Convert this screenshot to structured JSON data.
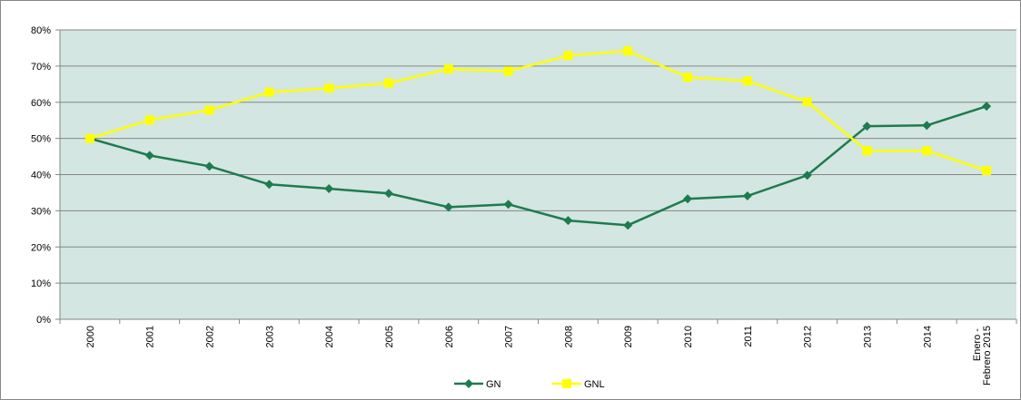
{
  "chart_data": {
    "type": "line",
    "categories": [
      "2000",
      "2001",
      "2002",
      "2003",
      "2004",
      "2005",
      "2006",
      "2007",
      "2008",
      "2009",
      "2010",
      "2011",
      "2012",
      "2013",
      "2014",
      "Enero - Febrero 2015"
    ],
    "series": [
      {
        "name": "GN",
        "color": "#1e7b4f",
        "marker": "diamond",
        "values": [
          50,
          45.3,
          42.3,
          37.3,
          36.1,
          34.8,
          31,
          31.8,
          27.3,
          26,
          33.3,
          34.1,
          39.8,
          53.4,
          53.6,
          58.9
        ]
      },
      {
        "name": "GNL",
        "color": "#ffff00",
        "marker": "square",
        "values": [
          50,
          55.1,
          57.8,
          62.8,
          63.9,
          65.3,
          69.2,
          68.6,
          72.9,
          74.2,
          66.9,
          65.9,
          60.1,
          46.6,
          46.6,
          41.1
        ]
      }
    ],
    "ylim": [
      0,
      80
    ],
    "yticks": [
      {
        "value": 0,
        "label": "0%"
      },
      {
        "value": 10,
        "label": "10%"
      },
      {
        "value": 20,
        "label": "20%"
      },
      {
        "value": 30,
        "label": "30%"
      },
      {
        "value": 40,
        "label": "40%"
      },
      {
        "value": 50,
        "label": "50%"
      },
      {
        "value": 60,
        "label": "60%"
      },
      {
        "value": 70,
        "label": "70%"
      },
      {
        "value": 80,
        "label": "80%"
      }
    ],
    "grid": true,
    "plot_background": "#d3e6e1",
    "legend": "bottom"
  }
}
